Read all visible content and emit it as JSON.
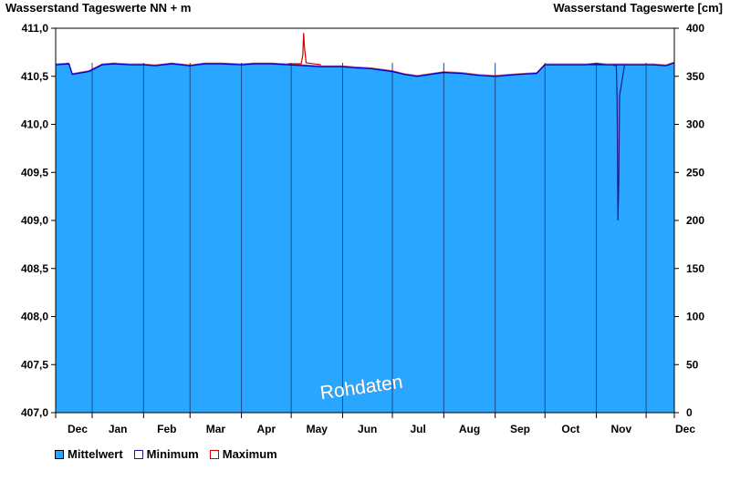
{
  "header": {
    "left_title": "Wasserstand Tageswerte NN + m",
    "right_title": "Wasserstand Tageswerte [cm]"
  },
  "watermark": "Rohdaten",
  "colors": {
    "fill": "#29a6ff",
    "mean_line": "#0000cc",
    "minimum": "#1a1a8c",
    "maximum": "#cc0000",
    "month_line": "#1b4f8a"
  },
  "legend": [
    {
      "label": "Mittelwert",
      "color": "#29a6ff",
      "kind": "filled"
    },
    {
      "label": "Minimum",
      "color": "#1a1a8c",
      "kind": "outline"
    },
    {
      "label": "Maximum",
      "color": "#cc0000",
      "kind": "outline"
    }
  ],
  "chart_data": {
    "type": "area",
    "title": "",
    "ylabel_left": "Wasserstand Tageswerte NN + m",
    "ylabel_right": "Wasserstand Tageswerte [cm]",
    "y_left": {
      "min": 407.0,
      "max": 411.0,
      "ticks": [
        "407,0",
        "407,5",
        "408,0",
        "408,5",
        "409,0",
        "409,5",
        "410,0",
        "410,5",
        "411,0"
      ]
    },
    "y_right": {
      "min": 0,
      "max": 400,
      "ticks": [
        "0",
        "50",
        "100",
        "150",
        "200",
        "250",
        "300",
        "350",
        "400"
      ]
    },
    "x_labels": [
      "Dec",
      "Jan",
      "Feb",
      "Mar",
      "Apr",
      "May",
      "Jun",
      "Jul",
      "Aug",
      "Sep",
      "Oct",
      "Nov",
      "Dec"
    ],
    "x_range_days": [
      0,
      373
    ],
    "month_starts_day": [
      22,
      53,
      81,
      112,
      142,
      173,
      203,
      234,
      265,
      295,
      326,
      356
    ],
    "grid": false,
    "legend_position": "bottom-left",
    "series": [
      {
        "name": "Mittelwert",
        "x": [
          0,
          8,
          10,
          20,
          28,
          35,
          45,
          53,
          60,
          70,
          81,
          90,
          100,
          112,
          120,
          130,
          140,
          150,
          160,
          173,
          180,
          190,
          203,
          210,
          218,
          226,
          234,
          245,
          255,
          265,
          272,
          280,
          290,
          295,
          300,
          310,
          320,
          326,
          332,
          340,
          350,
          360,
          368,
          373
        ],
        "y": [
          410.62,
          410.63,
          410.52,
          410.55,
          410.62,
          410.63,
          410.62,
          410.62,
          410.61,
          410.63,
          410.61,
          410.63,
          410.63,
          410.62,
          410.63,
          410.63,
          410.62,
          410.61,
          410.6,
          410.6,
          410.59,
          410.58,
          410.55,
          410.52,
          410.5,
          410.52,
          410.54,
          410.53,
          410.51,
          410.5,
          410.51,
          410.52,
          410.53,
          410.62,
          410.62,
          410.62,
          410.62,
          410.63,
          410.62,
          410.62,
          410.62,
          410.62,
          410.61,
          410.64
        ]
      },
      {
        "name": "Minimum",
        "x": [
          322,
          335,
          338,
          338.5,
          339,
          339.5,
          340,
          343,
          360
        ],
        "y": [
          410.62,
          410.62,
          410.61,
          410.25,
          409.0,
          409.4,
          410.3,
          410.62,
          410.62
        ]
      },
      {
        "name": "Maximum",
        "x": [
          140,
          148,
          149,
          149.5,
          150,
          151,
          160
        ],
        "y": [
          410.63,
          410.63,
          410.72,
          410.95,
          410.8,
          410.64,
          410.62
        ]
      }
    ]
  }
}
